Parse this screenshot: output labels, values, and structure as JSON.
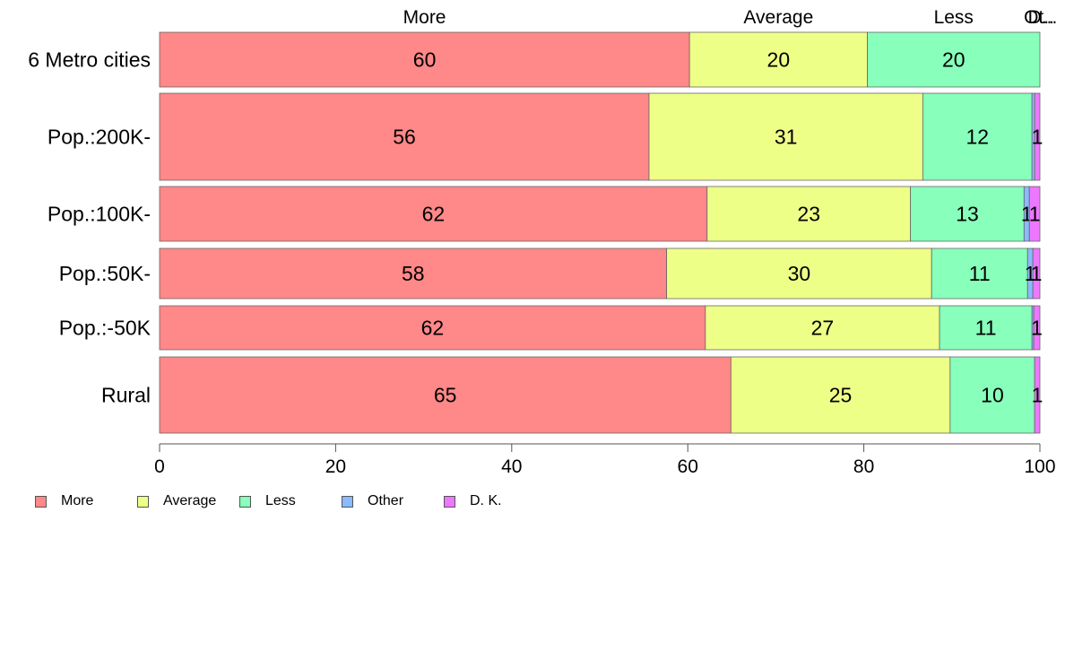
{
  "chart_data": {
    "type": "bar",
    "orientation": "horizontal",
    "stacked": true,
    "categories": [
      "6 Metro cities",
      "Pop.:200K-",
      "Pop.:100K-",
      "Pop.:50K-",
      "Pop.:-50K",
      "Rural"
    ],
    "series": [
      {
        "name": "More",
        "color": "#ff8888",
        "values": [
          60.2,
          55.6,
          62.2,
          57.6,
          62.0,
          64.9
        ],
        "labels": [
          "60",
          "56",
          "62",
          "58",
          "62",
          "65"
        ]
      },
      {
        "name": "Average",
        "color": "#eeff88",
        "values": [
          20.2,
          31.1,
          23.1,
          30.1,
          26.6,
          24.9
        ],
        "labels": [
          "20",
          "31",
          "23",
          "30",
          "27",
          "25"
        ]
      },
      {
        "name": "Less",
        "color": "#88ffbb",
        "values": [
          19.6,
          12.4,
          12.9,
          10.9,
          10.5,
          9.6
        ],
        "labels": [
          "20",
          "12",
          "13",
          "11",
          "11",
          "10"
        ]
      },
      {
        "name": "Other",
        "color": "#88bbff",
        "values": [
          0,
          0.3,
          0.6,
          0.6,
          0.2,
          0
        ],
        "labels": [
          "",
          "",
          "1",
          "1",
          "",
          ""
        ]
      },
      {
        "name": "D. K.",
        "color": "#ee77ff",
        "values": [
          0,
          0.6,
          1.2,
          0.8,
          0.7,
          0.6
        ],
        "labels": [
          "",
          "1",
          "1",
          "1",
          "1",
          "1"
        ]
      }
    ],
    "top_labels": [
      "More",
      "Average",
      "Less",
      "Ot..",
      "D..."
    ],
    "xlim": [
      0,
      100
    ],
    "xticks": [
      "0",
      "20",
      "40",
      "60",
      "80",
      "100"
    ],
    "xlabel": "",
    "ylabel": "",
    "grid": false,
    "legend_position": "bottom-left"
  }
}
